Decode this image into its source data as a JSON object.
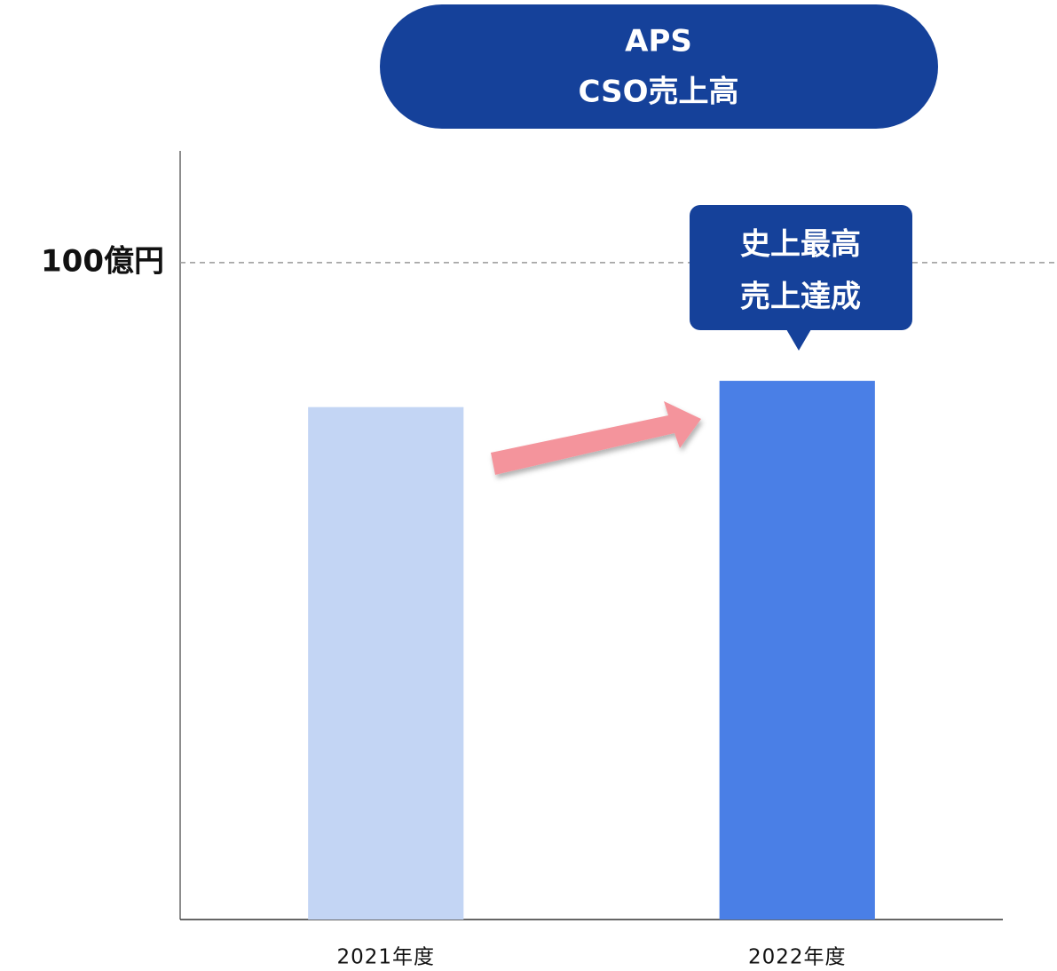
{
  "chart_data": {
    "type": "bar",
    "title": [
      "APS",
      "CSO売上高"
    ],
    "annotation": [
      "史上最高",
      "売上達成"
    ],
    "categories": [
      "2021年度",
      "2022年度"
    ],
    "values": [
      78,
      82
    ],
    "colors": [
      "#c3d5f4",
      "#4a7fe6"
    ],
    "ylim": [
      0,
      117
    ],
    "yticks": [
      {
        "value": 100,
        "label": "100億円"
      }
    ],
    "grid": true
  }
}
